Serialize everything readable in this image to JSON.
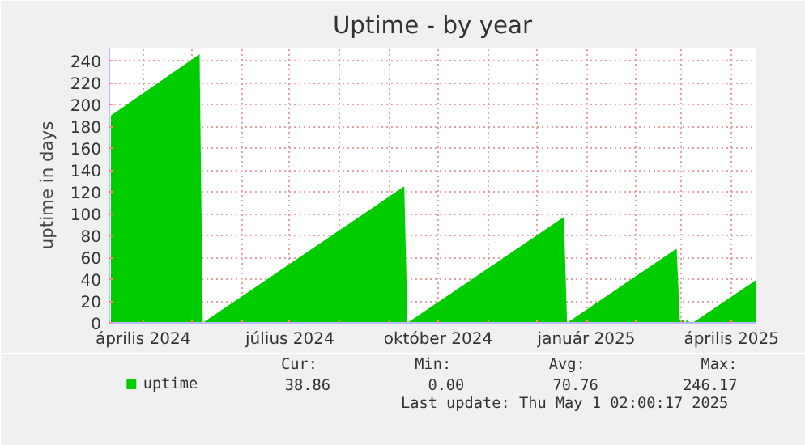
{
  "chart_data": {
    "type": "area",
    "title": "Uptime - by year",
    "ylabel": "uptime in days",
    "x": [
      "2024-03-12",
      "2024-05-06",
      "2024-05-08",
      "2024-09-10",
      "2024-09-12",
      "2024-12-18",
      "2024-12-20",
      "2025-02-26",
      "2025-02-28",
      "2025-03-02",
      "2025-03-03",
      "2025-03-05",
      "2025-03-06",
      "2025-03-08",
      "2025-04-16"
    ],
    "series": [
      {
        "name": "uptime",
        "color": "#00cc00",
        "values": [
          190,
          246,
          0,
          125,
          0,
          97,
          0,
          68,
          3,
          3,
          0,
          3,
          0,
          0,
          39
        ]
      }
    ],
    "xlim": [
      "2024-03-11",
      "2025-04-16"
    ],
    "xticks": [
      {
        "value": "2024-04-01",
        "label": "április 2024"
      },
      {
        "value": "2024-05-01",
        "label": null
      },
      {
        "value": "2024-06-01",
        "label": null
      },
      {
        "value": "2024-07-01",
        "label": "július 2024"
      },
      {
        "value": "2024-08-01",
        "label": null
      },
      {
        "value": "2024-09-01",
        "label": null
      },
      {
        "value": "2024-10-01",
        "label": "október 2024"
      },
      {
        "value": "2024-11-01",
        "label": null
      },
      {
        "value": "2024-12-01",
        "label": null
      },
      {
        "value": "2025-01-01",
        "label": "január 2025"
      },
      {
        "value": "2025-02-01",
        "label": null
      },
      {
        "value": "2025-03-01",
        "label": null
      },
      {
        "value": "2025-04-01",
        "label": "április 2025"
      }
    ],
    "ylim": [
      0,
      252
    ],
    "yticks": [
      0,
      20,
      40,
      60,
      80,
      100,
      120,
      140,
      160,
      180,
      200,
      220,
      240
    ],
    "grid": true,
    "legend": "bottom",
    "annotations": [
      "Cur:",
      "Min:",
      "Avg:",
      "Max:",
      "38.86",
      "0.00",
      "70.76",
      "246.17",
      "Last update: Thu May  1 02:00:17 2025"
    ]
  }
}
